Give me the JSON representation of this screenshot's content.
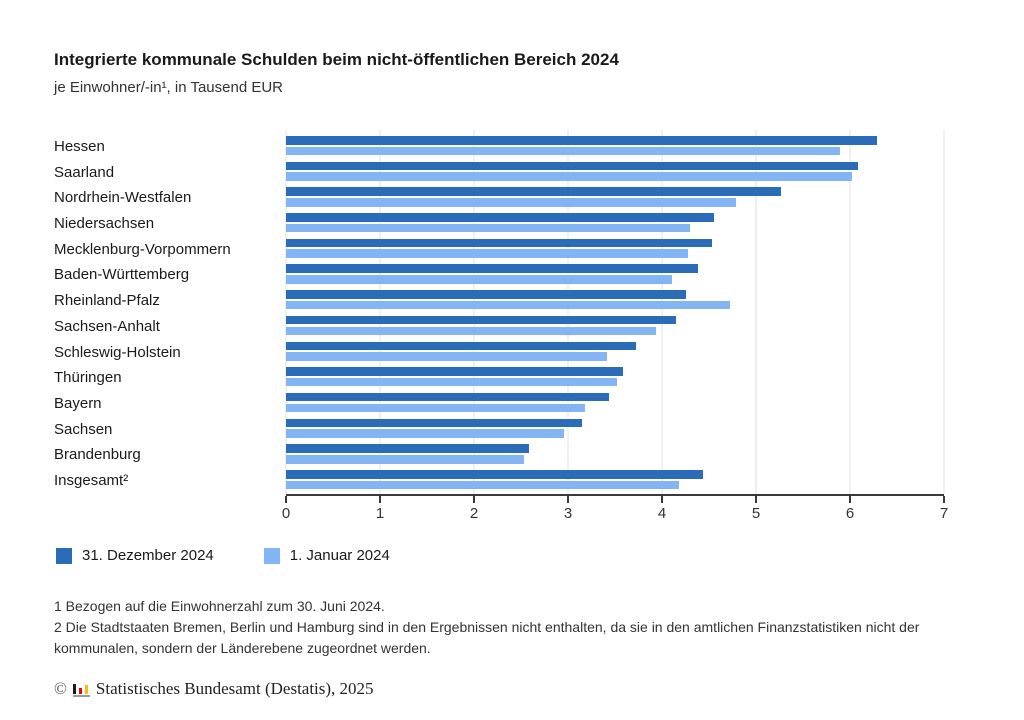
{
  "header": {
    "title": "Integrierte kommunale Schulden beim nicht-öffentlichen Bereich 2024",
    "subtitle": "je Einwohner/-in¹, in Tausend EUR"
  },
  "chart_data": {
    "type": "bar",
    "orientation": "horizontal",
    "title": "Integrierte kommunale Schulden beim nicht-öffentlichen Bereich 2024",
    "subtitle": "je Einwohner/-in¹, in Tausend EUR",
    "unit": "Tausend EUR",
    "categories": [
      "Hessen",
      "Saarland",
      "Nordrhein-Westfalen",
      "Niedersachsen",
      "Mecklenburg-Vorpommern",
      "Baden-Württemberg",
      "Rheinland-Pfalz",
      "Sachsen-Anhalt",
      "Schleswig-Holstein",
      "Thüringen",
      "Bayern",
      "Sachsen",
      "Brandenburg",
      "Insgesamt²"
    ],
    "series": [
      {
        "name": "31. Dezember 2024",
        "color": "#2b6cb9",
        "values": [
          6.29,
          6.08,
          5.27,
          4.55,
          4.53,
          4.38,
          4.25,
          4.15,
          3.72,
          3.58,
          3.44,
          3.15,
          2.58,
          4.44
        ]
      },
      {
        "name": "1. Januar 2024",
        "color": "#83b5f4",
        "values": [
          5.89,
          6.02,
          4.79,
          4.3,
          4.28,
          4.11,
          4.72,
          3.94,
          3.42,
          3.52,
          3.18,
          2.96,
          2.53,
          4.18
        ]
      }
    ],
    "xlim": [
      0,
      7
    ],
    "x_ticks": [
      0,
      1,
      2,
      3,
      4,
      5,
      6,
      7
    ],
    "grid": true,
    "legend_position": "bottom-left"
  },
  "colors": {
    "bar_dark_blue": "#2b6cb9",
    "bar_light_blue": "#83b5f4",
    "axis": "#3a3a3a",
    "gridline": "#f0f0f0"
  },
  "footnotes": {
    "line1": "1 Bezogen auf die Einwohnerzahl zum 30. Juni 2024.",
    "line2": "2 Die Stadtstaaten Bremen, Berlin und Hamburg sind in den Ergebnissen nicht enthalten, da sie in den amtlichen Finanzstatistiken nicht der kommunalen, sondern der Länderebene zugeordnet werden."
  },
  "footer": {
    "copyright": "©",
    "source": "Statistisches Bundesamt (Destatis), 2025",
    "logo_icon": "destatis-bar-chart-icon",
    "logo_colors": {
      "black": "#1a1a1a",
      "red": "#e30613",
      "gold": "#f3c100",
      "base": "#9b9b9b"
    }
  }
}
